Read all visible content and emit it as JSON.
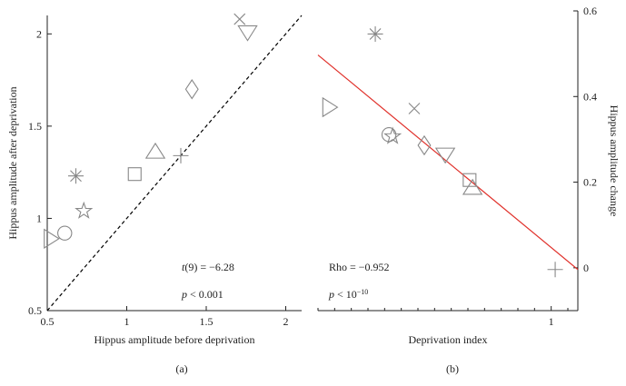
{
  "chart_data": [
    {
      "type": "scatter",
      "panel_label": "(a)",
      "xlabel": "Hippus amplitude before deprivation",
      "ylabel": "Hippus amplitude after deprivation",
      "xlim": [
        0.5,
        2.1
      ],
      "ylim": [
        0.5,
        2.1
      ],
      "xticks": [
        0.5,
        1,
        1.5,
        2
      ],
      "yticks": [
        0.5,
        1,
        1.5,
        2
      ],
      "y_axis_side": "left",
      "color": "#888888",
      "x": [
        0.52,
        0.61,
        0.73,
        0.68,
        1.05,
        1.18,
        1.34,
        1.41,
        1.71,
        1.76
      ],
      "values": [
        0.89,
        0.92,
        1.04,
        1.23,
        1.24,
        1.36,
        1.34,
        1.7,
        2.08,
        2.01
      ],
      "markers": [
        "triangle-right",
        "circle",
        "star",
        "asterisk",
        "square",
        "triangle-up",
        "plus",
        "diamond",
        "cross",
        "triangle-down"
      ],
      "reference_line": {
        "x": [
          0.5,
          2.1
        ],
        "y": [
          0.5,
          2.1
        ],
        "color": "#000000",
        "dashed": true
      },
      "annotations": [
        [
          {
            "text": "t",
            "italic": true
          },
          {
            "text": "(9) = −6.28"
          }
        ],
        [
          {
            "text": "p",
            "italic": true
          },
          {
            "text": " < 0.001"
          }
        ]
      ]
    },
    {
      "type": "scatter",
      "panel_label": "(b)",
      "xlabel": "Deprivation index",
      "ylabel": "Hippus amplitude change",
      "xlim": [
        0.3,
        1.08
      ],
      "ylim": [
        -0.1,
        0.6
      ],
      "xticks": [
        1
      ],
      "xminorticks": [
        0.3,
        0.35,
        0.4,
        0.45,
        0.5,
        0.55,
        0.6,
        0.65,
        0.7,
        0.75,
        0.8,
        0.85,
        0.9,
        0.95,
        1.05
      ],
      "yticks": [
        0,
        0.2,
        0.4,
        0.6
      ],
      "y_axis_side": "right",
      "color": "#888888",
      "x": [
        0.333,
        0.472,
        0.589,
        0.513,
        0.524,
        0.619,
        0.682,
        0.755,
        0.764,
        1.012
      ],
      "values": [
        0.375,
        0.546,
        0.372,
        0.311,
        0.307,
        0.286,
        0.265,
        0.205,
        0.186,
        -0.004
      ],
      "markers": [
        "triangle-right",
        "asterisk",
        "cross",
        "circle",
        "star",
        "diamond",
        "triangle-down",
        "square",
        "triangle-up",
        "plus"
      ],
      "reference_line": {
        "x": [
          0.3,
          1.08
        ],
        "y": [
          0.497,
          -0.004
        ],
        "color": "#e0302a",
        "dashed": false
      },
      "annotations": [
        [
          {
            "text": "Rho = −0.952"
          }
        ],
        [
          {
            "text": "p",
            "italic": true
          },
          {
            "text": " < 10"
          },
          {
            "text": "−10",
            "sup": true
          }
        ]
      ]
    }
  ]
}
